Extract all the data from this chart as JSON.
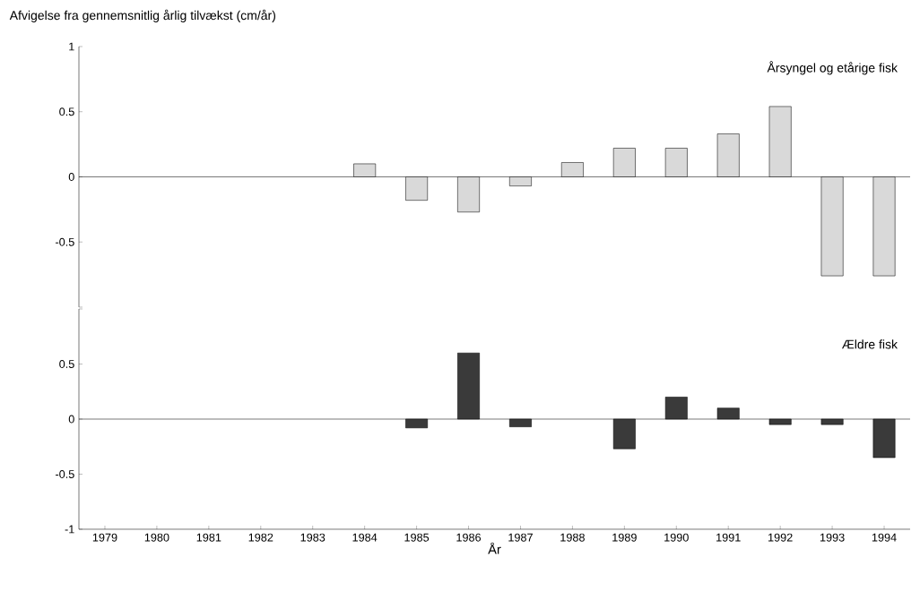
{
  "chart_data": [
    {
      "type": "bar",
      "title": "Afvigelse fra gennemsnitlig årlig tilvækst (cm/år)",
      "categories": [
        "1979",
        "1980",
        "1981",
        "1982",
        "1983",
        "1984",
        "1985",
        "1986",
        "1987",
        "1988",
        "1989",
        "1990",
        "1991",
        "1992",
        "1993",
        "1994"
      ],
      "series": [
        {
          "name": "Årsyngel og etårige  fisk",
          "color": "#d9d9d9",
          "values": [
            null,
            null,
            null,
            null,
            null,
            0.1,
            -0.18,
            -0.27,
            -0.07,
            0.11,
            0.22,
            0.22,
            0.33,
            0.54,
            -0.76,
            -0.76
          ]
        }
      ],
      "ylim": [
        -1,
        1
      ],
      "yticks": [
        {
          "value": -1,
          "label": null
        },
        -0.5,
        0,
        0.5,
        1
      ],
      "tick_labels": "y"
    },
    {
      "type": "bar",
      "xlabel": "År",
      "categories": [
        "1979",
        "1980",
        "1981",
        "1982",
        "1983",
        "1984",
        "1985",
        "1986",
        "1987",
        "1988",
        "1989",
        "1990",
        "1991",
        "1992",
        "1993",
        "1994"
      ],
      "series": [
        {
          "name": "Ældre fisk",
          "color": "#3a3a3a",
          "values": [
            null,
            null,
            null,
            null,
            null,
            null,
            -0.08,
            0.6,
            -0.07,
            null,
            -0.27,
            0.2,
            0.1,
            -0.05,
            -0.05,
            -0.35
          ]
        }
      ],
      "ylim": [
        -1,
        1
      ],
      "yticks": [
        -1,
        -0.5,
        0,
        0.5,
        {
          "value": 1,
          "label": null
        }
      ]
    }
  ]
}
